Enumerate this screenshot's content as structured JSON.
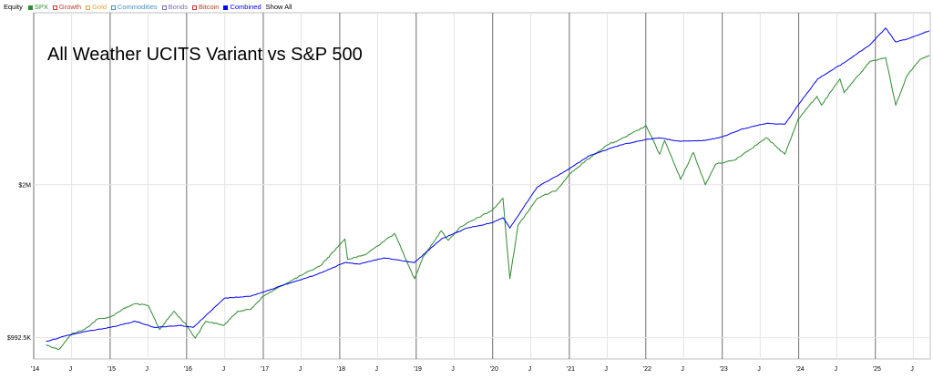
{
  "legend": {
    "title": "Equity",
    "items": [
      {
        "label": "SPX",
        "color": "#2e8b2e",
        "filled": true
      },
      {
        "label": "Growth",
        "color": "#c0392b",
        "filled": false
      },
      {
        "label": "Gold",
        "color": "#e6a23c",
        "filled": false
      },
      {
        "label": "Commodities",
        "color": "#4a90c2",
        "filled": false
      },
      {
        "label": "Bonds",
        "color": "#7b68b5",
        "filled": false
      },
      {
        "label": "Bitcoin",
        "color": "#c0392b",
        "filled": false
      },
      {
        "label": "Combined",
        "color": "#0000ee",
        "filled": true
      }
    ],
    "show_all": "Show All"
  },
  "chart_data": {
    "type": "line",
    "title": "All Weather UCITS Variant vs S&P 500",
    "y_scale": "log",
    "y_range": [
      900000,
      4400000
    ],
    "x_range": [
      "2014-01-01",
      "2025-09-20"
    ],
    "y_ticks": [
      {
        "value": 992500,
        "label": "$992.5K"
      },
      {
        "value": 2000000,
        "label": "$2M"
      }
    ],
    "x_ticks": [
      {
        "date": "2014-01-01",
        "label": "'14",
        "major": true
      },
      {
        "date": "2014-07-01",
        "label": "J",
        "major": false
      },
      {
        "date": "2015-01-01",
        "label": "'15",
        "major": true
      },
      {
        "date": "2015-07-01",
        "label": "J",
        "major": false
      },
      {
        "date": "2016-01-01",
        "label": "'16",
        "major": true
      },
      {
        "date": "2016-07-01",
        "label": "J",
        "major": false
      },
      {
        "date": "2017-01-01",
        "label": "'17",
        "major": true
      },
      {
        "date": "2017-07-01",
        "label": "J",
        "major": false
      },
      {
        "date": "2018-01-01",
        "label": "'18",
        "major": true
      },
      {
        "date": "2018-07-01",
        "label": "J",
        "major": false
      },
      {
        "date": "2019-01-01",
        "label": "'19",
        "major": true
      },
      {
        "date": "2019-07-01",
        "label": "J",
        "major": false
      },
      {
        "date": "2020-01-01",
        "label": "'20",
        "major": true
      },
      {
        "date": "2020-07-01",
        "label": "J",
        "major": false
      },
      {
        "date": "2021-01-01",
        "label": "'21",
        "major": true
      },
      {
        "date": "2021-07-01",
        "label": "J",
        "major": false
      },
      {
        "date": "2022-01-01",
        "label": "'22",
        "major": true
      },
      {
        "date": "2022-07-01",
        "label": "J",
        "major": false
      },
      {
        "date": "2023-01-01",
        "label": "'23",
        "major": true
      },
      {
        "date": "2023-07-01",
        "label": "J",
        "major": false
      },
      {
        "date": "2024-01-01",
        "label": "'24",
        "major": true
      },
      {
        "date": "2024-07-01",
        "label": "J",
        "major": false
      },
      {
        "date": "2025-01-01",
        "label": "'25",
        "major": true
      },
      {
        "date": "2025-07-01",
        "label": "J",
        "major": false
      }
    ],
    "series": [
      {
        "name": "SPX",
        "color": "#2e8b2e",
        "points": [
          [
            "2014-03-01",
            960000
          ],
          [
            "2014-05-01",
            940000
          ],
          [
            "2014-07-01",
            1010000
          ],
          [
            "2014-09-01",
            1030000
          ],
          [
            "2014-11-01",
            1080000
          ],
          [
            "2015-01-01",
            1090000
          ],
          [
            "2015-03-01",
            1130000
          ],
          [
            "2015-05-01",
            1160000
          ],
          [
            "2015-07-01",
            1150000
          ],
          [
            "2015-08-25",
            1030000
          ],
          [
            "2015-11-01",
            1120000
          ],
          [
            "2016-01-01",
            1050000
          ],
          [
            "2016-02-11",
            990000
          ],
          [
            "2016-04-01",
            1070000
          ],
          [
            "2016-06-27",
            1050000
          ],
          [
            "2016-09-01",
            1120000
          ],
          [
            "2016-11-01",
            1130000
          ],
          [
            "2017-01-01",
            1200000
          ],
          [
            "2017-04-01",
            1260000
          ],
          [
            "2017-07-01",
            1320000
          ],
          [
            "2017-10-01",
            1380000
          ],
          [
            "2018-01-26",
            1560000
          ],
          [
            "2018-02-08",
            1420000
          ],
          [
            "2018-05-01",
            1450000
          ],
          [
            "2018-09-20",
            1600000
          ],
          [
            "2018-12-24",
            1300000
          ],
          [
            "2019-02-01",
            1430000
          ],
          [
            "2019-04-30",
            1620000
          ],
          [
            "2019-06-03",
            1550000
          ],
          [
            "2019-08-01",
            1650000
          ],
          [
            "2019-12-31",
            1780000
          ],
          [
            "2020-02-19",
            1880000
          ],
          [
            "2020-03-23",
            1300000
          ],
          [
            "2020-05-01",
            1660000
          ],
          [
            "2020-08-01",
            1880000
          ],
          [
            "2020-11-01",
            1950000
          ],
          [
            "2021-01-01",
            2100000
          ],
          [
            "2021-04-01",
            2250000
          ],
          [
            "2021-07-01",
            2400000
          ],
          [
            "2021-09-01",
            2460000
          ],
          [
            "2022-01-03",
            2620000
          ],
          [
            "2022-03-08",
            2300000
          ],
          [
            "2022-04-01",
            2450000
          ],
          [
            "2022-06-16",
            2050000
          ],
          [
            "2022-08-16",
            2320000
          ],
          [
            "2022-10-12",
            2000000
          ],
          [
            "2022-12-01",
            2200000
          ],
          [
            "2023-03-01",
            2240000
          ],
          [
            "2023-07-31",
            2480000
          ],
          [
            "2023-10-27",
            2300000
          ],
          [
            "2023-12-29",
            2700000
          ],
          [
            "2024-03-28",
            3000000
          ],
          [
            "2024-04-19",
            2880000
          ],
          [
            "2024-07-16",
            3250000
          ],
          [
            "2024-08-05",
            3050000
          ],
          [
            "2024-12-06",
            3520000
          ],
          [
            "2025-02-19",
            3580000
          ],
          [
            "2025-04-08",
            2880000
          ],
          [
            "2025-06-01",
            3300000
          ],
          [
            "2025-08-01",
            3550000
          ],
          [
            "2025-09-15",
            3620000
          ]
        ]
      },
      {
        "name": "Combined",
        "color": "#0000ee",
        "points": [
          [
            "2014-03-01",
            975000
          ],
          [
            "2014-06-01",
            1000000
          ],
          [
            "2014-09-01",
            1020000
          ],
          [
            "2015-01-01",
            1040000
          ],
          [
            "2015-05-01",
            1070000
          ],
          [
            "2015-08-01",
            1040000
          ],
          [
            "2015-12-01",
            1050000
          ],
          [
            "2016-02-01",
            1040000
          ],
          [
            "2016-07-01",
            1190000
          ],
          [
            "2016-11-01",
            1200000
          ],
          [
            "2017-04-01",
            1260000
          ],
          [
            "2017-09-01",
            1320000
          ],
          [
            "2018-01-26",
            1400000
          ],
          [
            "2018-04-01",
            1390000
          ],
          [
            "2018-08-01",
            1430000
          ],
          [
            "2018-12-24",
            1400000
          ],
          [
            "2019-05-01",
            1560000
          ],
          [
            "2019-09-01",
            1640000
          ],
          [
            "2019-12-31",
            1680000
          ],
          [
            "2020-02-19",
            1720000
          ],
          [
            "2020-03-23",
            1640000
          ],
          [
            "2020-08-01",
            1980000
          ],
          [
            "2020-12-31",
            2150000
          ],
          [
            "2021-04-01",
            2280000
          ],
          [
            "2021-09-01",
            2400000
          ],
          [
            "2021-12-31",
            2460000
          ],
          [
            "2022-03-01",
            2480000
          ],
          [
            "2022-06-16",
            2440000
          ],
          [
            "2022-10-12",
            2450000
          ],
          [
            "2023-01-01",
            2490000
          ],
          [
            "2023-04-01",
            2580000
          ],
          [
            "2023-07-31",
            2650000
          ],
          [
            "2023-10-27",
            2640000
          ],
          [
            "2023-12-29",
            2880000
          ],
          [
            "2024-04-01",
            3250000
          ],
          [
            "2024-08-05",
            3500000
          ],
          [
            "2024-12-06",
            3800000
          ],
          [
            "2025-02-19",
            4100000
          ],
          [
            "2025-04-08",
            3850000
          ],
          [
            "2025-06-01",
            3900000
          ],
          [
            "2025-09-15",
            4050000
          ]
        ]
      }
    ]
  }
}
